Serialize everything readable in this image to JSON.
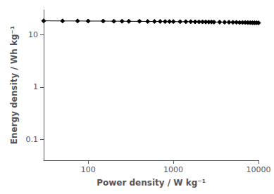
{
  "chart_data": {
    "type": "line",
    "xlabel": "Power density / W kg⁻¹",
    "ylabel": "Energy density / Wh kg⁻¹",
    "x": [
      30,
      50,
      75,
      100,
      150,
      200,
      250,
      300,
      400,
      500,
      600,
      700,
      800,
      900,
      1000,
      1200,
      1400,
      1600,
      1800,
      2000,
      2200,
      2400,
      2600,
      2800,
      3000,
      3500,
      4000,
      4500,
      5000,
      5500,
      6000,
      6500,
      7000,
      7500,
      8000,
      8500,
      9000,
      9500,
      10000
    ],
    "values": [
      18.5,
      18.4,
      18.4,
      18.3,
      18.3,
      18.2,
      18.2,
      18.1,
      18.1,
      18.0,
      18.0,
      18.0,
      17.9,
      17.9,
      17.9,
      17.8,
      17.8,
      17.8,
      17.7,
      17.7,
      17.7,
      17.6,
      17.6,
      17.6,
      17.5,
      17.5,
      17.4,
      17.4,
      17.3,
      17.3,
      17.2,
      17.2,
      17.2,
      17.1,
      17.1,
      17.0,
      17.0,
      17.0,
      16.9
    ],
    "color": "#000000",
    "marker": "diamond",
    "xlim": [
      30,
      10000
    ],
    "ylim": [
      0.04,
      30
    ],
    "xticks": [
      100,
      1000,
      10000
    ],
    "yticks": [
      0.1,
      1,
      10
    ],
    "log": true,
    "grid": false
  }
}
